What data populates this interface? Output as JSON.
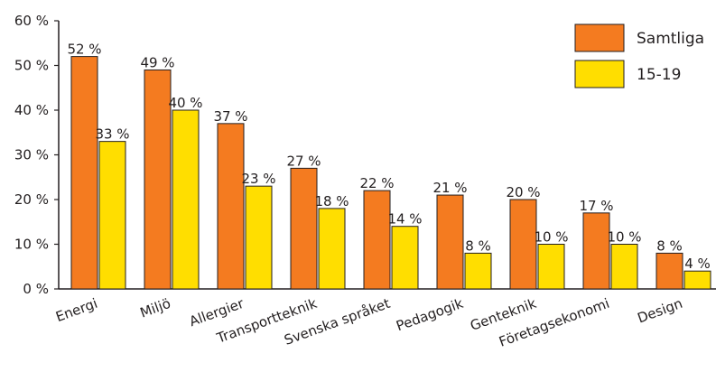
{
  "chart_data": {
    "type": "bar",
    "categories": [
      "Energi",
      "Miljö",
      "Allergier",
      "Transportteknik",
      "Svenska språket",
      "Pedagogik",
      "Genteknik",
      "Företagsekonomi",
      "Design"
    ],
    "series": [
      {
        "name": "Samtliga",
        "values": [
          52,
          49,
          37,
          27,
          22,
          21,
          20,
          17,
          8
        ],
        "color": "#f47b20"
      },
      {
        "name": "15-19",
        "values": [
          33,
          40,
          23,
          18,
          14,
          8,
          10,
          10,
          4
        ],
        "color": "#ffde00"
      }
    ],
    "value_suffix": " %",
    "ylim": [
      0,
      60
    ],
    "yticks": [
      0,
      10,
      20,
      30,
      40,
      50,
      60
    ],
    "ytick_labels": [
      "0 %",
      "10 %",
      "20 %",
      "30 %",
      "40 %",
      "50 %",
      "60 %"
    ],
    "grid": false,
    "legend_position": "top-right",
    "title": "",
    "xlabel": "",
    "ylabel": ""
  }
}
